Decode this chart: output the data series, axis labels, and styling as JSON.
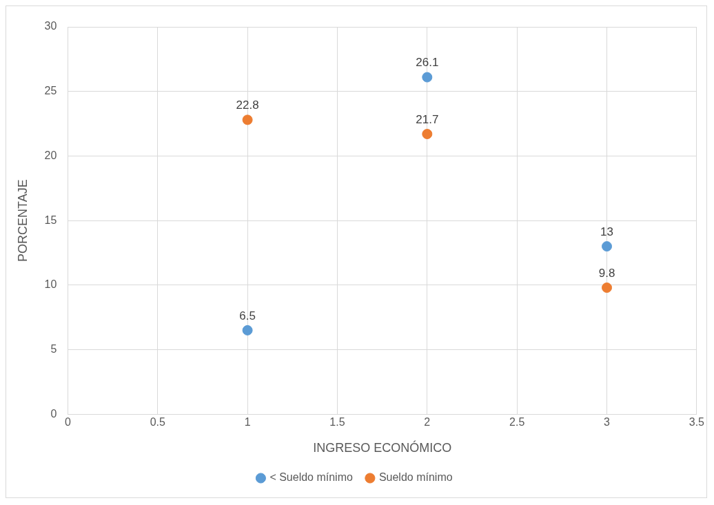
{
  "chart_data": {
    "type": "scatter",
    "xlabel": "INGRESO ECONÓMICO",
    "ylabel": "PORCENTAJE",
    "series": [
      {
        "name": "< Sueldo mínimo",
        "color": "#5b9bd5",
        "x": [
          1,
          2,
          3
        ],
        "values": [
          6.5,
          26.1,
          13
        ]
      },
      {
        "name": "Sueldo mínimo",
        "color": "#ed7d31",
        "x": [
          1,
          2,
          3
        ],
        "values": [
          22.8,
          21.7,
          9.8
        ]
      }
    ],
    "xlim": [
      0,
      3.5
    ],
    "xticks": [
      0,
      0.5,
      1,
      1.5,
      2,
      2.5,
      3,
      3.5
    ],
    "ylim": [
      0,
      30
    ],
    "yticks": [
      0,
      5,
      10,
      15,
      20,
      25,
      30
    ],
    "grid": true,
    "legend": "bottom",
    "marker": "circle",
    "data_labels": true
  }
}
